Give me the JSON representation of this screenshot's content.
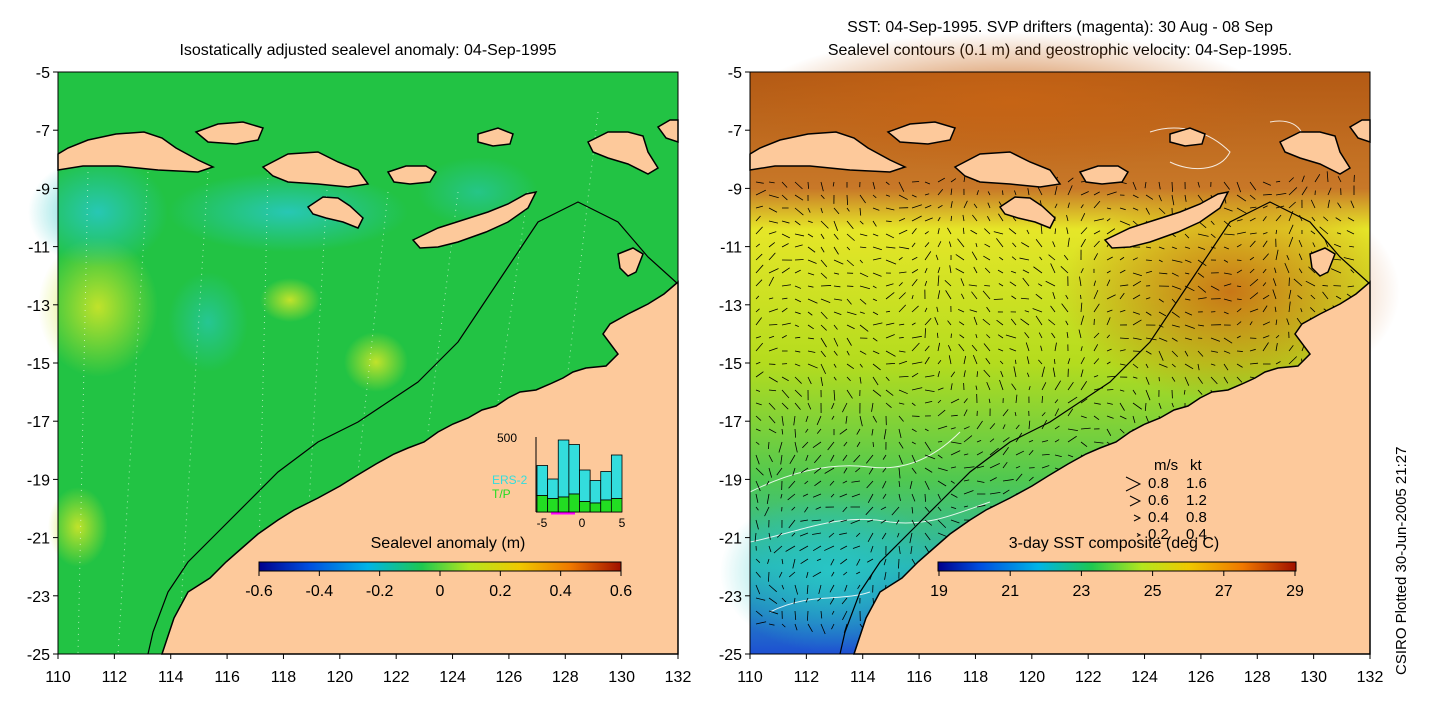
{
  "left_panel": {
    "title": "Isostatically adjusted sealevel anomaly: 04-Sep-1995",
    "colorbar_label": "Sealevel anomaly (m)",
    "colorbar_ticks": [
      "-0.6",
      "-0.4",
      "-0.2",
      "0",
      "0.2",
      "0.4",
      "0.6"
    ],
    "inset": {
      "y_max_label": "500",
      "labels": [
        {
          "text": "ERS-2",
          "color": "#33dddd"
        },
        {
          "text": "T/P",
          "color": "#22dd22"
        }
      ],
      "x_ticks": [
        "-5",
        "0",
        "5"
      ],
      "ers2_counts": [
        200,
        130,
        380,
        330,
        210,
        150,
        190,
        290
      ],
      "tp_counts": [
        110,
        90,
        100,
        120,
        70,
        60,
        80,
        90
      ]
    }
  },
  "right_panel": {
    "title_line1": "SST: 04-Sep-1995. SVP drifters (magenta): 30 Aug - 08 Sep",
    "title_line2": "Sealevel contours (0.1 m) and geostrophic velocity: 04-Sep-1995.",
    "colorbar_label": "3-day SST composite (deg C)",
    "colorbar_ticks": [
      "19",
      "21",
      "23",
      "25",
      "27",
      "29"
    ],
    "velocity_legend": {
      "header_ms": "m/s",
      "header_kt": "kt",
      "rows": [
        {
          "ms": "0.8",
          "kt": "1.6"
        },
        {
          "ms": "0.6",
          "kt": "1.2"
        },
        {
          "ms": "0.4",
          "kt": "0.8"
        },
        {
          "ms": "0.2",
          "kt": "0.4"
        }
      ]
    }
  },
  "axes": {
    "lat_ticks": [
      "-5",
      "-7",
      "-9",
      "-11",
      "-13",
      "-15",
      "-17",
      "-19",
      "-21",
      "-23",
      "-25"
    ],
    "lon_ticks": [
      "110",
      "112",
      "114",
      "116",
      "118",
      "120",
      "122",
      "124",
      "126",
      "128",
      "130",
      "132"
    ]
  },
  "credit": "CSIRO Plotted 30-Jun-2005 21:27",
  "colors": {
    "land": "#fdc99b",
    "coast": "#000000",
    "ocean_sla": "#22c344"
  }
}
